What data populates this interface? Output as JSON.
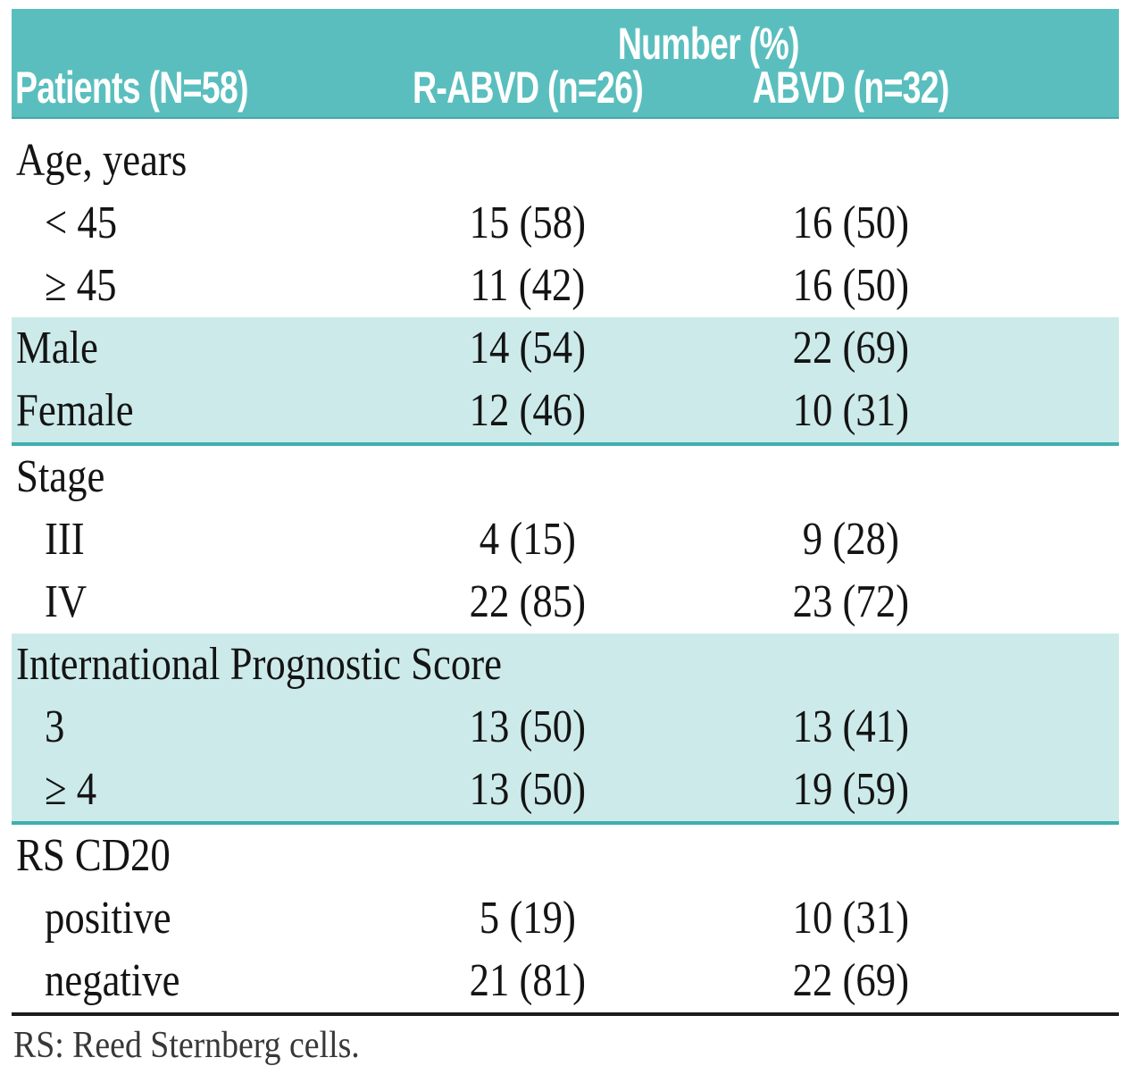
{
  "colors": {
    "header_bg": "#5abebe",
    "header_edge": "#46a8a8",
    "band_bg": "#cdeaea",
    "separator": "#3fafaf",
    "rule": "#1c1c1c",
    "header_text": "#ffffff",
    "body_text": "#141414",
    "footnote_text": "#383838",
    "page_bg": "#ffffff"
  },
  "table": {
    "header": {
      "group_label": "Number (%)",
      "patients_col": "Patients (N=58)",
      "col2": "R-ABVD (n=26)",
      "col3": "ABVD (n=32)"
    },
    "sections": [
      {
        "shaded": false,
        "separator": false,
        "rows": [
          {
            "label": "Age, years",
            "indent": false,
            "rabvd": "",
            "abvd": ""
          },
          {
            "label": "< 45",
            "indent": true,
            "rabvd": "15 (58)",
            "abvd": "16 (50)"
          },
          {
            "label": "≥ 45",
            "indent": true,
            "rabvd": "11 (42)",
            "abvd": "16 (50)"
          }
        ]
      },
      {
        "shaded": true,
        "separator": true,
        "rows": [
          {
            "label": "Male",
            "indent": false,
            "rabvd": "14 (54)",
            "abvd": "22 (69)"
          },
          {
            "label": "Female",
            "indent": false,
            "rabvd": "12 (46)",
            "abvd": "10 (31)"
          }
        ]
      },
      {
        "shaded": false,
        "separator": false,
        "rows": [
          {
            "label": "Stage",
            "indent": false,
            "rabvd": "",
            "abvd": ""
          },
          {
            "label": "III",
            "indent": true,
            "rabvd": "4 (15)",
            "abvd": "9 (28)"
          },
          {
            "label": "IV",
            "indent": true,
            "rabvd": "22 (85)",
            "abvd": "23 (72)"
          }
        ]
      },
      {
        "shaded": true,
        "separator": true,
        "rows": [
          {
            "label": "International Prognostic Score",
            "indent": false,
            "rabvd": "",
            "abvd": ""
          },
          {
            "label": "3",
            "indent": true,
            "rabvd": "13 (50)",
            "abvd": "13 (41)"
          },
          {
            "label": "≥ 4",
            "indent": true,
            "rabvd": "13 (50)",
            "abvd": "19 (59)"
          }
        ]
      },
      {
        "shaded": false,
        "separator": false,
        "rows": [
          {
            "label": "RS CD20",
            "indent": false,
            "rabvd": "",
            "abvd": ""
          },
          {
            "label": "positive",
            "indent": true,
            "rabvd": "5 (19)",
            "abvd": "10 (31)"
          },
          {
            "label": "negative",
            "indent": true,
            "rabvd": "21 (81)",
            "abvd": "22 (69)"
          }
        ]
      }
    ],
    "footnote": "RS: Reed Sternberg cells."
  }
}
